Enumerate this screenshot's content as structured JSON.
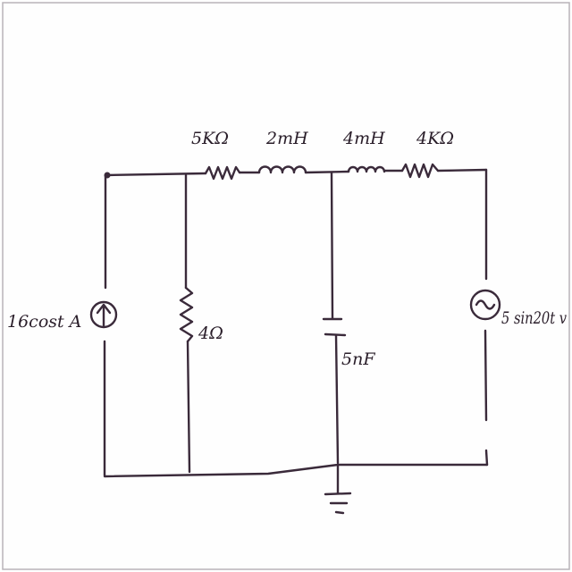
{
  "diagram": {
    "components": {
      "current_source": {
        "label": "16cost A",
        "icon": "current-source-arrow-icon"
      },
      "resistor_4ohm": {
        "label": "4Ω"
      },
      "resistor_5k": {
        "label": "5KΩ"
      },
      "inductor_2m": {
        "label": "2mH"
      },
      "inductor_4m": {
        "label": "4mH"
      },
      "resistor_4k": {
        "label": "4KΩ"
      },
      "capacitor": {
        "label": "5nF"
      },
      "voltage_source": {
        "label": "5 sin20t v",
        "icon": "ac-voltage-source-icon"
      },
      "ground": {
        "icon": "ground-icon"
      }
    },
    "ink_color": "#3a2a3a",
    "paper_color": "#fefefe"
  }
}
